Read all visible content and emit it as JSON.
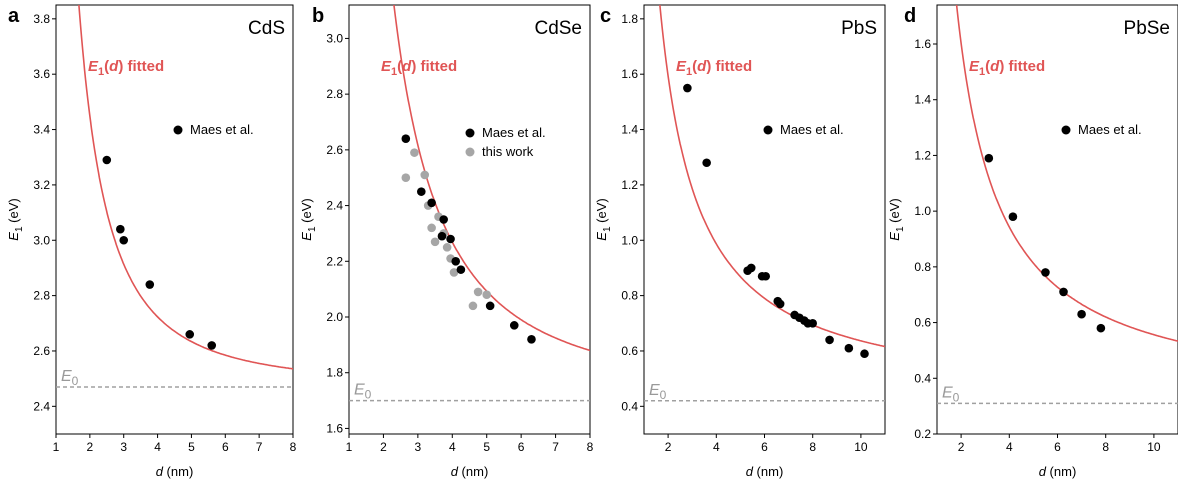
{
  "chart_data": [
    {
      "type": "scatter",
      "panel_label": "a",
      "material": "CdS",
      "xlabel_var": "d",
      "xlabel_unit": "(nm)",
      "ylabel_var": "E",
      "ylabel_sub": "1",
      "ylabel_unit": "(eV)",
      "fit_label_var": "E",
      "fit_label_sub": "1",
      "fit_label_arg": "d",
      "fit_label_suffix": "fitted",
      "e0_label": "E",
      "e0_sub": "0",
      "xlim": [
        1,
        8
      ],
      "ylim": [
        2.3,
        3.85
      ],
      "xticks": [
        1,
        2,
        3,
        4,
        5,
        6,
        7,
        8
      ],
      "yticks": [
        2.4,
        2.6,
        2.8,
        3.0,
        3.2,
        3.4,
        3.6,
        3.8
      ],
      "ytick_decimals": 1,
      "e0": 2.47,
      "fit": {
        "A": 3.78,
        "B": 1.95
      },
      "legend": "top-right",
      "series": [
        {
          "name": "Maes et al.",
          "color": "#000000",
          "x": [
            2.5,
            2.9,
            3.0,
            3.77,
            4.95,
            5.6
          ],
          "y": [
            3.29,
            3.04,
            3.0,
            2.84,
            2.66,
            2.62
          ]
        }
      ]
    },
    {
      "type": "scatter",
      "panel_label": "b",
      "material": "CdSe",
      "xlabel_var": "d",
      "xlabel_unit": "(nm)",
      "ylabel_var": "E",
      "ylabel_sub": "1",
      "ylabel_unit": "(eV)",
      "fit_label_var": "E",
      "fit_label_sub": "1",
      "fit_label_arg": "d",
      "fit_label_suffix": "fitted",
      "e0_label": "E",
      "e0_sub": "0",
      "xlim": [
        1,
        8
      ],
      "ylim": [
        1.58,
        3.12
      ],
      "xticks": [
        1,
        2,
        3,
        4,
        5,
        6,
        7,
        8
      ],
      "yticks": [
        1.6,
        1.8,
        2.0,
        2.2,
        2.4,
        2.6,
        2.8,
        3.0
      ],
      "ytick_decimals": 1,
      "e0": 1.7,
      "fit": {
        "A": 5.68,
        "B": 1.66
      },
      "legend": "top-right",
      "series": [
        {
          "name": "Maes et al.",
          "color": "#000000",
          "x": [
            2.65,
            3.1,
            3.4,
            3.7,
            3.75,
            3.95,
            4.1,
            4.25,
            5.1,
            5.8,
            6.3
          ],
          "y": [
            2.64,
            2.45,
            2.41,
            2.29,
            2.35,
            2.28,
            2.2,
            2.17,
            2.04,
            1.97,
            1.92
          ]
        },
        {
          "name": "this work",
          "color": "#a6a6a6",
          "x": [
            2.65,
            2.9,
            3.2,
            3.3,
            3.4,
            3.5,
            3.6,
            3.75,
            3.85,
            3.95,
            4.05,
            4.6,
            4.75,
            5.0
          ],
          "y": [
            2.5,
            2.59,
            2.51,
            2.4,
            2.32,
            2.27,
            2.36,
            2.3,
            2.25,
            2.21,
            2.16,
            2.04,
            2.09,
            2.08
          ]
        }
      ]
    },
    {
      "type": "scatter",
      "panel_label": "c",
      "material": "PbS",
      "xlabel_var": "d",
      "xlabel_unit": "(nm)",
      "ylabel_var": "E",
      "ylabel_sub": "1",
      "ylabel_unit": "(eV)",
      "fit_label_var": "E",
      "fit_label_sub": "1",
      "fit_label_arg": "d",
      "fit_label_suffix": "fitted",
      "e0_label": "E",
      "e0_sub": "0",
      "xlim": [
        1,
        11
      ],
      "ylim": [
        0.3,
        1.85
      ],
      "xticks": [
        2,
        4,
        6,
        8,
        10
      ],
      "yticks": [
        0.4,
        0.6,
        0.8,
        1.0,
        1.2,
        1.4,
        1.6,
        1.8
      ],
      "ytick_decimals": 1,
      "e0": 0.42,
      "fit": {
        "A": 2.43,
        "B": 1.05
      },
      "legend": "top-right",
      "series": [
        {
          "name": "Maes et al.",
          "color": "#000000",
          "x": [
            2.8,
            3.6,
            5.3,
            5.45,
            5.9,
            6.05,
            6.55,
            6.65,
            7.25,
            7.45,
            7.65,
            7.8,
            8.0,
            8.7,
            9.5,
            10.15
          ],
          "y": [
            1.55,
            1.28,
            0.89,
            0.9,
            0.87,
            0.87,
            0.78,
            0.77,
            0.73,
            0.72,
            0.71,
            0.7,
            0.7,
            0.64,
            0.61,
            0.59
          ]
        }
      ]
    },
    {
      "type": "scatter",
      "panel_label": "d",
      "material": "PbSe",
      "xlabel_var": "d",
      "xlabel_unit": "(nm)",
      "ylabel_var": "E",
      "ylabel_sub": "1",
      "ylabel_unit": "(eV)",
      "fit_label_var": "E",
      "fit_label_sub": "1",
      "fit_label_arg": "d",
      "fit_label_suffix": "fitted",
      "e0_label": "E",
      "e0_sub": "0",
      "xlim": [
        1,
        11
      ],
      "ylim": [
        0.2,
        1.74
      ],
      "xticks": [
        2,
        4,
        6,
        8,
        10
      ],
      "yticks": [
        0.2,
        0.4,
        0.6,
        0.8,
        1.0,
        1.2,
        1.4,
        1.6
      ],
      "ytick_decimals": 1,
      "e0": 0.31,
      "fit": {
        "A": 2.64,
        "B": 1.03
      },
      "legend": "top-right",
      "series": [
        {
          "name": "Maes et al.",
          "color": "#000000",
          "x": [
            3.15,
            4.15,
            5.5,
            6.25,
            7.0,
            7.8
          ],
          "y": [
            1.19,
            0.98,
            0.78,
            0.71,
            0.63,
            0.58
          ]
        }
      ]
    }
  ],
  "colors": {
    "fit": "#e05555",
    "e0_line": "#a0a0a0",
    "e0_text": "#999999",
    "axis": "#000000"
  }
}
